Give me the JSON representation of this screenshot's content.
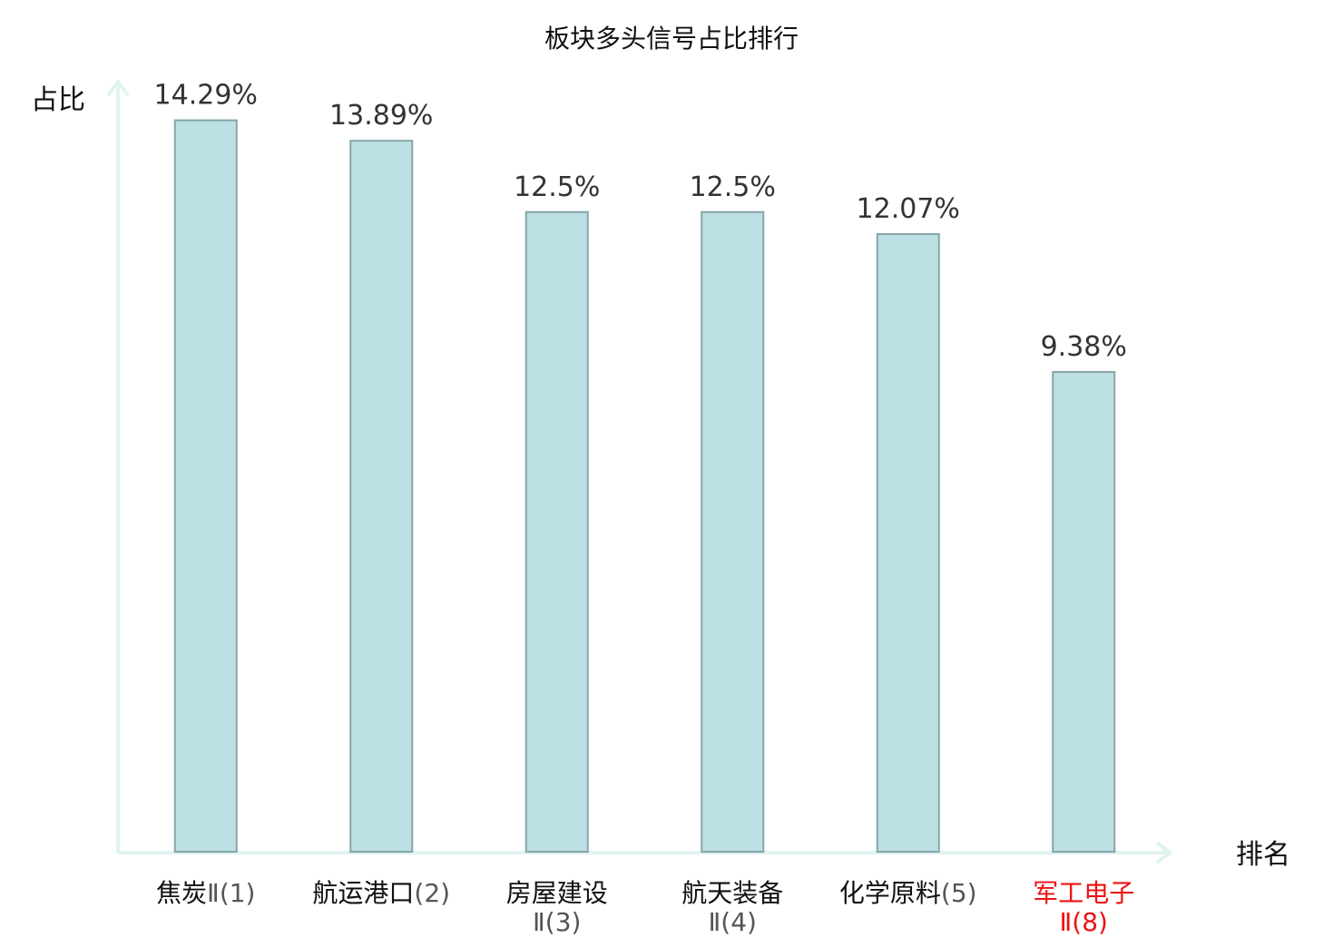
{
  "chart_data": {
    "type": "bar",
    "title": "板块多头信号占比排行",
    "ylabel": "占比",
    "xlabel": "排名",
    "ylim": [
      0,
      15
    ],
    "grid": false,
    "legend": "none",
    "categories": [
      {
        "name": "焦炭",
        "suffix": "Ⅱ(1)",
        "highlight": false
      },
      {
        "name": "航运港口",
        "suffix": "(2)",
        "highlight": false
      },
      {
        "name": "房屋建设",
        "suffix": "Ⅱ(3)",
        "highlight": false
      },
      {
        "name": "航天装备",
        "suffix": "Ⅱ(4)",
        "highlight": false
      },
      {
        "name": "化学原料",
        "suffix": "(5)",
        "highlight": false
      },
      {
        "name": "军工电子",
        "suffix": "Ⅱ(8)",
        "highlight": true
      }
    ],
    "values": [
      14.29,
      13.89,
      12.5,
      12.5,
      12.07,
      9.38
    ],
    "value_labels": [
      "14.29%",
      "13.89%",
      "12.5%",
      "12.5%",
      "12.07%",
      "9.38%"
    ],
    "colors": {
      "bar_fill": "#bce0e3",
      "bar_stroke": "#86a6a9",
      "axis": "#e0f3f0",
      "text": "#111111",
      "value_label": "#333333",
      "suffix": "#555555",
      "highlight": "#ee1111"
    }
  }
}
